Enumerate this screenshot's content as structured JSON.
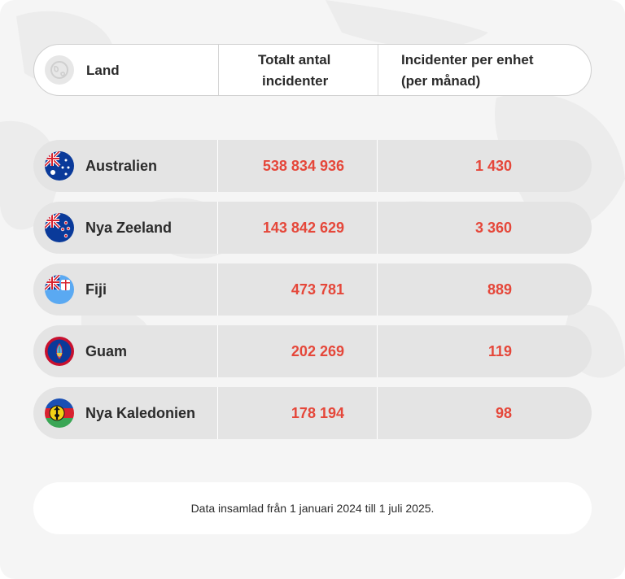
{
  "header": {
    "col_country": "Land",
    "col_total": "Totalt antal\nincidenter",
    "col_total_line1": "Totalt antal",
    "col_total_line2": "incidenter",
    "col_per_unit_line1": "Incidenter per enhet",
    "col_per_unit_line2": "(per månad)",
    "icon": "globe-icon"
  },
  "rows": [
    {
      "country": "Australien",
      "total": "538 834 936",
      "per_unit": "1 430",
      "flag": "australia-flag-icon"
    },
    {
      "country": "Nya Zeeland",
      "total": "143 842 629",
      "per_unit": "3 360",
      "flag": "new-zealand-flag-icon"
    },
    {
      "country": "Fiji",
      "total": "473 781",
      "per_unit": "889",
      "flag": "fiji-flag-icon"
    },
    {
      "country": "Guam",
      "total": "202 269",
      "per_unit": "119",
      "flag": "guam-flag-icon"
    },
    {
      "country": "Nya Kaledonien",
      "total": "178 194",
      "per_unit": "98",
      "flag": "new-caledonia-flag-icon"
    }
  ],
  "footer": {
    "note": "Data insamlad från 1 januari 2024 till 1 juli 2025."
  },
  "colors": {
    "number_accent": "#e5473a",
    "row_background": "#e4e4e4",
    "card_background": "#f5f5f5",
    "text": "#2b2b2b"
  }
}
